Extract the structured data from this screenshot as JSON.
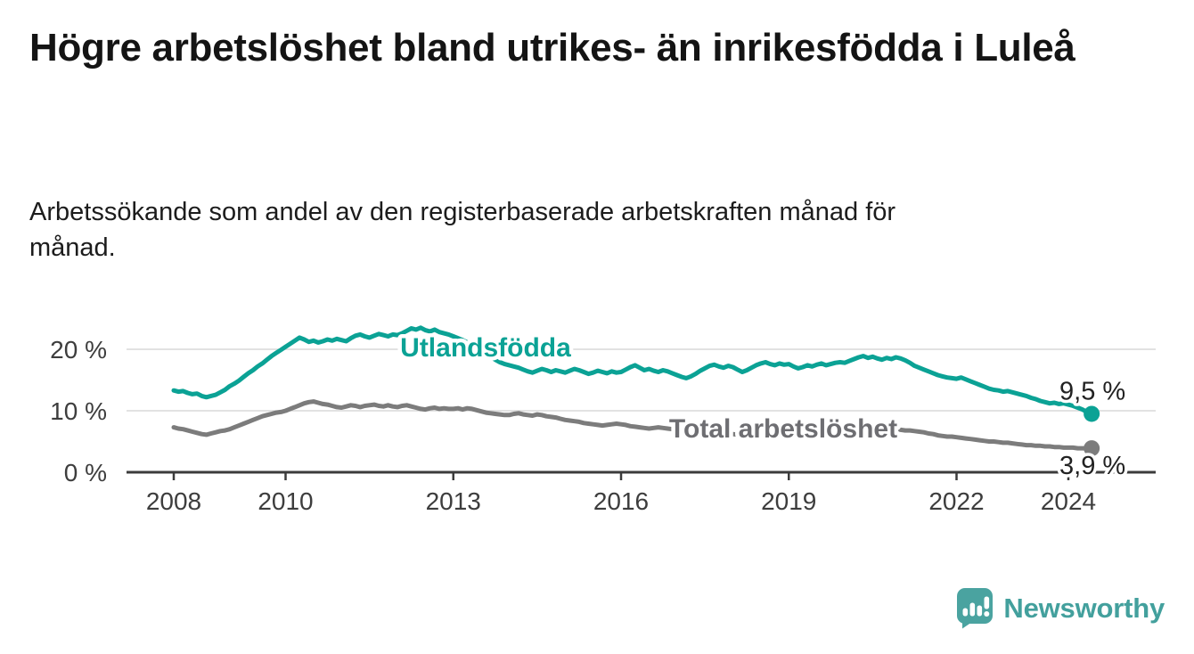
{
  "title": "Högre arbetslöshet bland utrikes- än inrikesfödda i Luleå",
  "subtitle": "Arbetssökande som andel av den registerbaserade arbetskraften månad för månad.",
  "footer": {
    "brand": "Newsworthy",
    "logo_icon": "speech-bubble-bar-chart-icon",
    "brand_color": "#43a09d"
  },
  "colors": {
    "foreign_born_line": "#0ba295",
    "total_line": "#7c7c7c",
    "grid": "#d8d8d8",
    "axis": "#3b3b3b",
    "tick_text": "#3d3d3d",
    "value_text": "#222222",
    "total_label_text": "#6e6e72"
  },
  "chart_data": {
    "type": "line",
    "unit": "%",
    "frequency": "monthly",
    "x_start": "2008-01",
    "x_end": "2024-06",
    "ylim": [
      0,
      25
    ],
    "grid": "horizontal",
    "grid_values": [
      10,
      20
    ],
    "y_ticks": [
      {
        "label": "0 %",
        "value": 0
      },
      {
        "label": "10 %",
        "value": 10
      },
      {
        "label": "20 %",
        "value": 20
      }
    ],
    "x_ticks": [
      {
        "label": "2008",
        "year": 2008
      },
      {
        "label": "2010",
        "year": 2010
      },
      {
        "label": "2013",
        "year": 2013
      },
      {
        "label": "2016",
        "year": 2016
      },
      {
        "label": "2019",
        "year": 2019
      },
      {
        "label": "2022",
        "year": 2022
      },
      {
        "label": "2024",
        "year": 2024
      }
    ],
    "series": [
      {
        "name": "Utlandsfödda",
        "color": "#0ba295",
        "label_color": "#0ba295",
        "end_label": "9,5 %",
        "end_value": 9.5,
        "values": [
          13.3,
          13.1,
          13.2,
          12.9,
          12.7,
          12.8,
          12.4,
          12.2,
          12.4,
          12.6,
          13.0,
          13.4,
          14.0,
          14.4,
          14.9,
          15.5,
          16.1,
          16.6,
          17.2,
          17.7,
          18.3,
          18.9,
          19.4,
          19.9,
          20.4,
          20.9,
          21.4,
          21.9,
          21.6,
          21.2,
          21.4,
          21.1,
          21.3,
          21.6,
          21.4,
          21.7,
          21.5,
          21.3,
          21.8,
          22.2,
          22.4,
          22.1,
          21.9,
          22.2,
          22.5,
          22.3,
          22.1,
          22.4,
          22.3,
          22.6,
          23.0,
          23.4,
          23.2,
          23.5,
          23.1,
          22.9,
          23.2,
          22.8,
          22.6,
          22.4,
          22.1,
          21.8,
          21.5,
          21.1,
          20.7,
          20.3,
          19.8,
          19.3,
          18.8,
          18.3,
          17.9,
          17.6,
          17.4,
          17.2,
          17.0,
          16.7,
          16.4,
          16.2,
          16.5,
          16.8,
          16.6,
          16.3,
          16.6,
          16.4,
          16.2,
          16.5,
          16.8,
          16.6,
          16.3,
          16.0,
          16.2,
          16.5,
          16.3,
          16.1,
          16.4,
          16.2,
          16.3,
          16.7,
          17.1,
          17.4,
          17.0,
          16.6,
          16.8,
          16.5,
          16.3,
          16.6,
          16.4,
          16.1,
          15.8,
          15.5,
          15.3,
          15.6,
          16.0,
          16.5,
          16.9,
          17.3,
          17.5,
          17.2,
          17.0,
          17.3,
          17.1,
          16.7,
          16.3,
          16.6,
          17.0,
          17.4,
          17.7,
          17.9,
          17.6,
          17.4,
          17.7,
          17.5,
          17.6,
          17.2,
          16.9,
          17.1,
          17.4,
          17.2,
          17.5,
          17.7,
          17.4,
          17.6,
          17.8,
          17.9,
          17.8,
          18.1,
          18.4,
          18.7,
          18.9,
          18.6,
          18.8,
          18.5,
          18.3,
          18.6,
          18.4,
          18.7,
          18.5,
          18.2,
          17.8,
          17.3,
          17.0,
          16.7,
          16.4,
          16.1,
          15.8,
          15.6,
          15.4,
          15.3,
          15.2,
          15.4,
          15.1,
          14.8,
          14.5,
          14.2,
          13.9,
          13.6,
          13.4,
          13.3,
          13.1,
          13.2,
          13.0,
          12.8,
          12.6,
          12.4,
          12.1,
          11.9,
          11.6,
          11.4,
          11.2,
          11.3,
          11.1,
          11.2,
          11.0,
          10.8,
          10.5,
          10.2,
          9.8,
          9.5
        ]
      },
      {
        "name": "Total arbetslöshet",
        "color": "#7c7c7c",
        "label_color": "#6e6e72",
        "end_label": "3,9 %",
        "end_value": 3.9,
        "values": [
          7.3,
          7.1,
          7.0,
          6.8,
          6.6,
          6.4,
          6.2,
          6.1,
          6.3,
          6.5,
          6.7,
          6.8,
          7.0,
          7.3,
          7.6,
          7.9,
          8.2,
          8.5,
          8.8,
          9.1,
          9.3,
          9.5,
          9.7,
          9.8,
          10.0,
          10.3,
          10.6,
          10.9,
          11.2,
          11.4,
          11.5,
          11.3,
          11.1,
          11.0,
          10.8,
          10.6,
          10.5,
          10.7,
          10.9,
          10.8,
          10.6,
          10.8,
          10.9,
          11.0,
          10.8,
          10.7,
          10.9,
          10.7,
          10.6,
          10.8,
          10.9,
          10.7,
          10.5,
          10.3,
          10.2,
          10.4,
          10.5,
          10.3,
          10.4,
          10.3,
          10.3,
          10.4,
          10.2,
          10.4,
          10.3,
          10.1,
          9.9,
          9.7,
          9.6,
          9.5,
          9.4,
          9.3,
          9.3,
          9.5,
          9.6,
          9.4,
          9.3,
          9.2,
          9.4,
          9.3,
          9.1,
          9.0,
          8.9,
          8.7,
          8.5,
          8.4,
          8.3,
          8.2,
          8.0,
          7.9,
          7.8,
          7.7,
          7.6,
          7.7,
          7.8,
          7.9,
          7.8,
          7.7,
          7.5,
          7.4,
          7.3,
          7.2,
          7.1,
          7.2,
          7.3,
          7.2,
          7.1,
          7.0,
          7.0,
          6.9,
          6.7,
          6.6,
          6.5,
          6.4,
          6.3,
          6.4,
          6.5,
          6.4,
          6.3,
          6.2,
          6.2,
          6.1,
          6.0,
          6.1,
          6.0,
          5.9,
          6.0,
          6.1,
          6.0,
          6.1,
          6.2,
          6.2,
          6.3,
          6.2,
          6.1,
          6.2,
          6.3,
          6.2,
          6.3,
          6.4,
          6.3,
          6.4,
          6.5,
          6.6,
          6.7,
          6.9,
          7.2,
          7.4,
          7.5,
          7.4,
          7.3,
          7.2,
          7.1,
          7.0,
          6.9,
          6.9,
          6.9,
          6.8,
          6.8,
          6.7,
          6.6,
          6.5,
          6.3,
          6.2,
          6.0,
          5.9,
          5.8,
          5.8,
          5.7,
          5.6,
          5.5,
          5.4,
          5.3,
          5.2,
          5.1,
          5.0,
          5.0,
          4.9,
          4.8,
          4.8,
          4.7,
          4.6,
          4.5,
          4.4,
          4.4,
          4.3,
          4.3,
          4.2,
          4.2,
          4.1,
          4.1,
          4.0,
          4.0,
          4.0,
          3.9,
          3.9,
          3.9,
          3.9
        ]
      }
    ],
    "legend_position": "inline-labels"
  }
}
